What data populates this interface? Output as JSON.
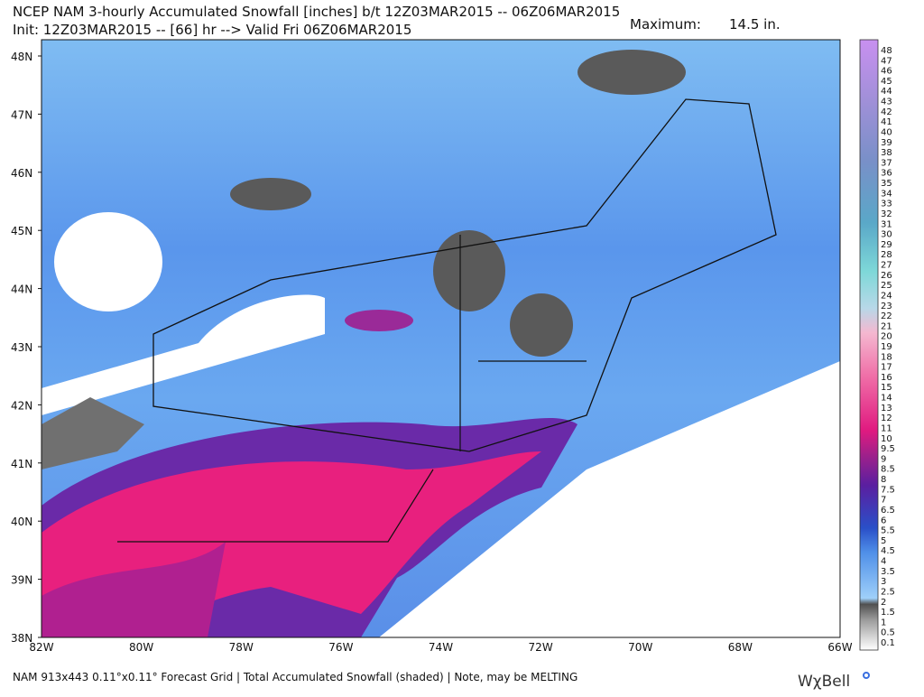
{
  "header": {
    "title": "NCEP NAM 3-hourly Accumulated Snowfall [inches] b/t 12Z03MAR2015 -- 06Z06MAR2015",
    "subtitle": "Init: 12Z03MAR2015 -- [66] hr --> Valid Fri 06Z06MAR2015",
    "maximum_label": "Maximum:",
    "maximum_value": "14.5 in."
  },
  "map": {
    "lat_labels": [
      "48N",
      "47N",
      "46N",
      "45N",
      "44N",
      "43N",
      "42N",
      "41N",
      "40N",
      "39N",
      "38N"
    ],
    "lon_labels": [
      "82W",
      "80W",
      "78W",
      "76W",
      "74W",
      "72W",
      "70W",
      "68W",
      "66W"
    ]
  },
  "colorbar": {
    "labels": [
      "48",
      "47",
      "46",
      "45",
      "44",
      "43",
      "42",
      "41",
      "40",
      "39",
      "38",
      "37",
      "36",
      "35",
      "34",
      "33",
      "32",
      "31",
      "30",
      "29",
      "28",
      "27",
      "26",
      "25",
      "24",
      "23",
      "22",
      "21",
      "20",
      "19",
      "18",
      "17",
      "16",
      "15",
      "14",
      "13",
      "12",
      "11",
      "10",
      "9.5",
      "9",
      "8.5",
      "8",
      "7.5",
      "7",
      "6.5",
      "6",
      "5.5",
      "5",
      "4.5",
      "4",
      "3.5",
      "3",
      "2.5",
      "2",
      "1.5",
      "1",
      "0.5",
      "0.1"
    ]
  },
  "footer": {
    "text": "NAM 913x443 0.11°x0.11° Forecast Grid | Total Accumulated Snowfall (shaded) | Note, may be MELTING",
    "logo": "WχBell"
  }
}
